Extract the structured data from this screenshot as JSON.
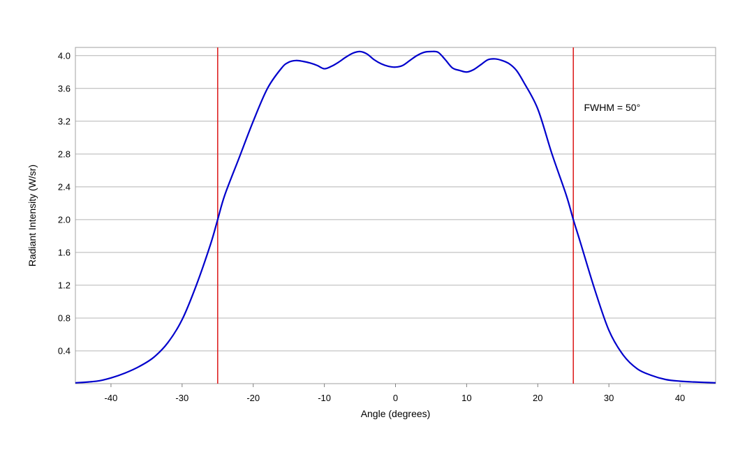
{
  "chart_data": {
    "type": "line",
    "title": "",
    "xlabel": "Angle (degrees)",
    "ylabel": "Radiant Intensity (W/sr)",
    "xlim": [
      -45,
      45
    ],
    "ylim": [
      0,
      4.1
    ],
    "x_ticks": [
      "-40",
      "-30",
      "-20",
      "-10",
      "0",
      "10",
      "20",
      "30",
      "40"
    ],
    "y_ticks": [
      "0.4",
      "0.8",
      "1.2",
      "1.6",
      "2.0",
      "2.4",
      "2.8",
      "3.2",
      "3.6",
      "4.0"
    ],
    "grid": "horizontal",
    "legend": "none",
    "series": [
      {
        "color": "#0000cc",
        "x": [
          -45,
          -42,
          -40,
          -38,
          -36,
          -34,
          -32,
          -30,
          -28,
          -26,
          -25,
          -24,
          -22,
          -20,
          -18,
          -16,
          -15,
          -14,
          -13,
          -12,
          -11,
          -10,
          -9,
          -8,
          -7,
          -6,
          -5,
          -4,
          -3,
          -2,
          -1,
          0,
          1,
          2,
          3,
          4,
          5,
          6,
          7,
          8,
          9,
          10,
          11,
          12,
          13,
          14,
          15,
          16,
          17,
          18,
          20,
          22,
          24,
          25,
          26,
          28,
          30,
          32,
          34,
          36,
          38,
          40,
          42,
          45
        ],
        "y": [
          0.01,
          0.03,
          0.07,
          0.13,
          0.21,
          0.32,
          0.5,
          0.78,
          1.2,
          1.7,
          2.0,
          2.3,
          2.75,
          3.2,
          3.6,
          3.85,
          3.92,
          3.94,
          3.93,
          3.91,
          3.88,
          3.84,
          3.87,
          3.92,
          3.98,
          4.03,
          4.05,
          4.02,
          3.95,
          3.9,
          3.87,
          3.86,
          3.88,
          3.94,
          4.0,
          4.04,
          4.05,
          4.04,
          3.95,
          3.85,
          3.82,
          3.8,
          3.83,
          3.89,
          3.95,
          3.96,
          3.94,
          3.9,
          3.82,
          3.68,
          3.35,
          2.8,
          2.3,
          2.0,
          1.72,
          1.15,
          0.65,
          0.35,
          0.18,
          0.1,
          0.05,
          0.03,
          0.02,
          0.01
        ]
      }
    ],
    "reference_lines": [
      {
        "x": -25,
        "color": "#dd2222"
      },
      {
        "x": 25,
        "color": "#dd2222"
      }
    ],
    "annotation": {
      "text": "FWHM = 50°",
      "x": 26.5,
      "y": 3.37
    }
  }
}
